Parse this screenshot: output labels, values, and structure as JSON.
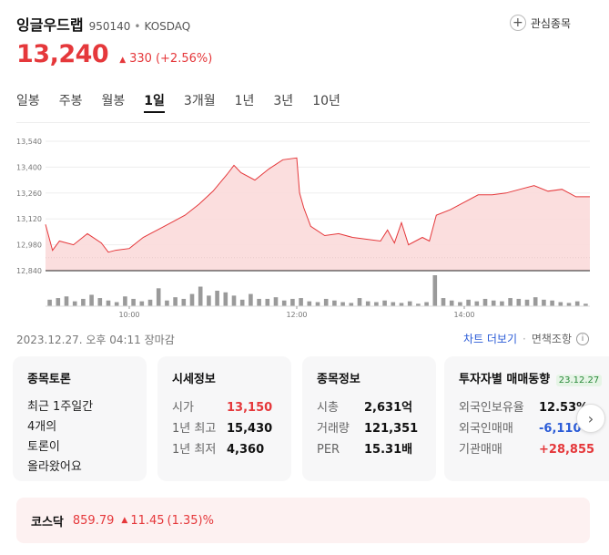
{
  "header": {
    "name": "잉글우드랩",
    "code": "950140",
    "separator": "•",
    "market": "KOSDAQ",
    "fav_label": "관심종목"
  },
  "price": {
    "current": "13,240",
    "change": "330",
    "change_pct": "(+2.56%)",
    "direction": "up"
  },
  "tabs": [
    {
      "label": "일봉",
      "active": false
    },
    {
      "label": "주봉",
      "active": false
    },
    {
      "label": "월봉",
      "active": false
    },
    {
      "label": "1일",
      "active": true
    },
    {
      "label": "3개월",
      "active": false
    },
    {
      "label": "1년",
      "active": false
    },
    {
      "label": "3년",
      "active": false
    },
    {
      "label": "10년",
      "active": false
    }
  ],
  "chart_data": {
    "type": "area",
    "title": "",
    "xlabel": "",
    "ylabel": "",
    "ylim": [
      12840,
      13540
    ],
    "y_ticks": [
      "13,540",
      "13,400",
      "13,260",
      "13,120",
      "12,980",
      "12,840"
    ],
    "x_ticks": [
      "10:00",
      "12:00",
      "14:00"
    ],
    "prev_close": 12910,
    "color": "#e5383b",
    "fill_color": "#fbdada",
    "series": [
      {
        "x": [
          "09:00",
          "09:05",
          "09:10",
          "09:20",
          "09:30",
          "09:40",
          "09:45",
          "09:50",
          "10:00",
          "10:10",
          "10:20",
          "10:30",
          "10:40",
          "10:50",
          "11:00",
          "11:10",
          "11:15",
          "11:20",
          "11:30",
          "11:40",
          "11:50",
          "12:00",
          "12:02",
          "12:05",
          "12:10",
          "12:20",
          "12:30",
          "12:40",
          "12:50",
          "13:00",
          "13:05",
          "13:10",
          "13:15",
          "13:20",
          "13:30",
          "13:35",
          "13:40",
          "13:50",
          "14:00",
          "14:10",
          "14:20",
          "14:30",
          "14:40",
          "14:50",
          "15:00",
          "15:10",
          "15:20",
          "15:30"
        ],
        "values": [
          13090,
          12950,
          13000,
          12980,
          13040,
          12990,
          12940,
          12950,
          12960,
          13020,
          13060,
          13100,
          13140,
          13200,
          13270,
          13360,
          13410,
          13370,
          13330,
          13390,
          13440,
          13450,
          13260,
          13180,
          13080,
          13030,
          13040,
          13020,
          13010,
          13000,
          13060,
          12990,
          13100,
          12980,
          13020,
          13000,
          13140,
          13170,
          13210,
          13250,
          13250,
          13260,
          13280,
          13300,
          13270,
          13280,
          13240,
          13240
        ]
      }
    ],
    "volume": [
      8,
      10,
      12,
      6,
      9,
      14,
      10,
      7,
      5,
      12,
      9,
      6,
      8,
      22,
      7,
      11,
      9,
      15,
      24,
      13,
      19,
      17,
      13,
      8,
      15,
      9,
      9,
      11,
      7,
      9,
      10,
      6,
      5,
      9,
      7,
      5,
      4,
      10,
      6,
      5,
      7,
      5,
      4,
      6,
      3,
      5,
      38,
      10,
      7,
      5,
      8,
      6,
      9,
      7,
      6,
      10,
      9,
      8,
      11,
      8,
      7,
      5,
      4,
      6,
      3
    ]
  },
  "status": {
    "timestamp": "2023.12.27. 오후 04:11 장마감",
    "link_chart": "차트 더보기",
    "link_dot": "·",
    "link_disclaimer": "면책조항"
  },
  "cards": {
    "discussion": {
      "title": "종목토론",
      "lines": [
        "최근 1주일간",
        "4개의",
        "토론이",
        "올라왔어요"
      ]
    },
    "quote": {
      "title": "시세정보",
      "rows": [
        {
          "k": "시가",
          "v": "13,150",
          "color": "red"
        },
        {
          "k": "1년 최고",
          "v": "15,430",
          "color": "dark"
        },
        {
          "k": "1년 최저",
          "v": "4,360",
          "color": "dark"
        }
      ]
    },
    "info": {
      "title": "종목정보",
      "rows": [
        {
          "k": "시총",
          "v": "2,631억"
        },
        {
          "k": "거래량",
          "v": "121,351"
        },
        {
          "k": "PER",
          "v": "15.31배"
        }
      ]
    },
    "investor": {
      "title": "투자자별 매매동향",
      "badge": "23.12.27",
      "rows": [
        {
          "k": "외국인보유율",
          "v": "12.53%",
          "color": "dark"
        },
        {
          "k": "외국인매매",
          "v": "-6,110",
          "color": "blue"
        },
        {
          "k": "기관매매",
          "v": "+28,855",
          "color": "red"
        }
      ]
    }
  },
  "index": {
    "name": "코스닥",
    "value": "859.79",
    "change": "11.45",
    "change_pct": "(1.35)%"
  }
}
